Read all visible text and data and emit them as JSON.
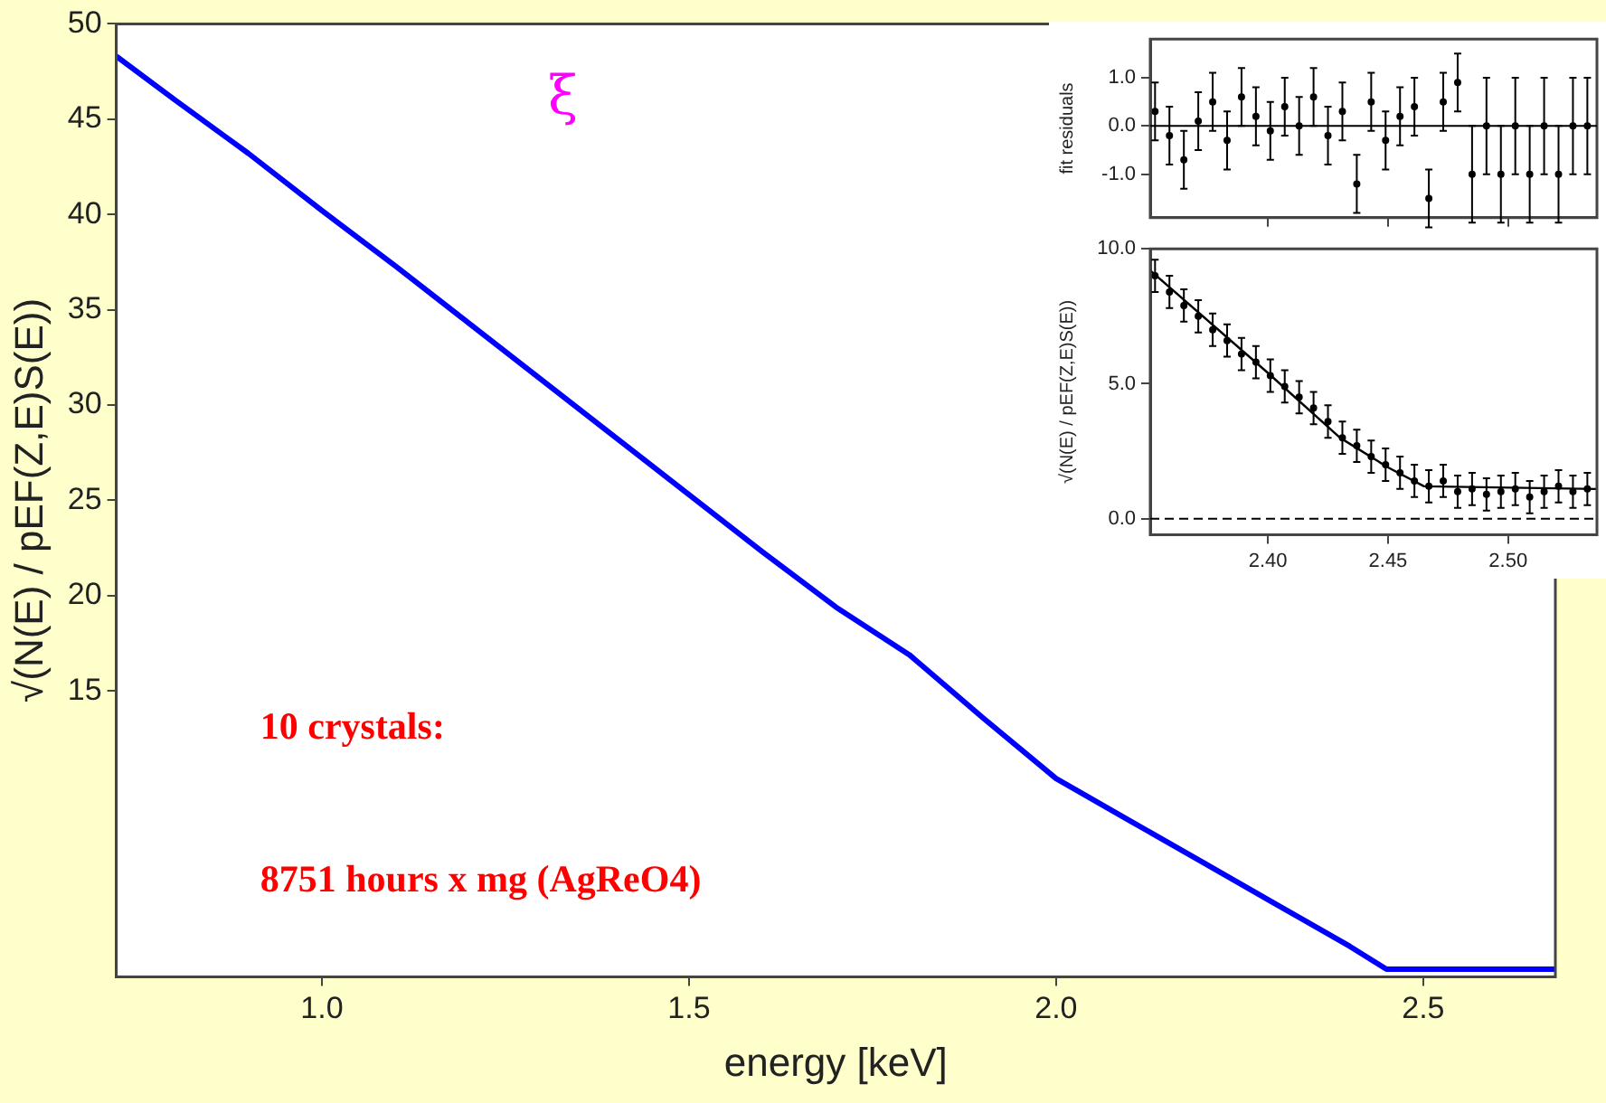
{
  "chart_data": [
    {
      "type": "line",
      "xlabel": "energy [keV]",
      "ylabel": "√(N(E) / pEF(Z,E)S(E))",
      "annotations": [
        "ξ",
        "10 crystals:",
        "8751 hours x mg (AgReO4)"
      ],
      "xlim": [
        0.72,
        2.68
      ],
      "ylim": [
        0,
        50
      ],
      "xticks": [
        {
          "value": 1,
          "label": "1.0"
        },
        {
          "value": 1.5,
          "label": "1.5"
        },
        {
          "value": 2,
          "label": "2.0"
        },
        {
          "value": 2.5,
          "label": "2.5"
        }
      ],
      "yticks": [
        15,
        20,
        25,
        30,
        35,
        40,
        45,
        50
      ],
      "x": [
        0.72,
        0.8,
        0.9,
        1.0,
        1.1,
        1.2,
        1.3,
        1.4,
        1.5,
        1.6,
        1.7,
        1.8,
        1.9,
        2.0,
        2.1,
        2.2,
        2.3,
        2.4,
        2.45,
        2.55,
        2.68
      ],
      "series": [
        {
          "color": "#0000ff",
          "values": [
            48.3,
            46.0,
            43.2,
            40.2,
            37.3,
            34.3,
            31.3,
            28.3,
            25.3,
            22.3,
            19.4,
            16.9,
            13.6,
            10.4,
            8.2,
            6.0,
            3.8,
            1.6,
            0.4,
            0.4,
            0.4
          ]
        }
      ]
    },
    {
      "type": "scatter",
      "ylabel": "fit residuals",
      "marker": "circle",
      "tick_labels": "y",
      "xlim": [
        2.351,
        2.537
      ],
      "ylim": [
        -1.9,
        1.8
      ],
      "xticks": [
        {
          "value": 2.4,
          "label": null
        },
        {
          "value": 2.45,
          "label": null
        },
        {
          "value": 2.5,
          "label": null
        }
      ],
      "yticks": [
        {
          "value": -1,
          "label": "-1.0"
        },
        {
          "value": 0,
          "label": "0.0"
        },
        {
          "value": 1,
          "label": "1.0"
        }
      ],
      "ref_lines": [
        {
          "axis": "y",
          "value": 0,
          "line_style": "solid"
        }
      ],
      "x": [
        2.353,
        2.359,
        2.365,
        2.371,
        2.377,
        2.383,
        2.389,
        2.395,
        2.401,
        2.407,
        2.413,
        2.419,
        2.425,
        2.431,
        2.437,
        2.443,
        2.449,
        2.455,
        2.461,
        2.467,
        2.473,
        2.479,
        2.485,
        2.491,
        2.497,
        2.503,
        2.509,
        2.515,
        2.521,
        2.527,
        2.533
      ],
      "series": [
        {
          "color": "#000000",
          "values": [
            0.3,
            -0.2,
            -0.7,
            0.1,
            0.5,
            -0.3,
            0.6,
            0.2,
            -0.1,
            0.4,
            0.0,
            0.6,
            -0.2,
            0.3,
            -1.2,
            0.5,
            -0.3,
            0.2,
            0.4,
            -1.5,
            0.5,
            0.9,
            -1.0,
            0.0,
            -1.0,
            0.0,
            -1.0,
            0.0,
            -1.0,
            0.0,
            0.0
          ],
          "errors": [
            0.6,
            0.6,
            0.6,
            0.6,
            0.6,
            0.6,
            0.6,
            0.6,
            0.6,
            0.6,
            0.6,
            0.6,
            0.6,
            0.6,
            0.6,
            0.6,
            0.6,
            0.6,
            0.6,
            0.6,
            0.6,
            0.6,
            1.0,
            1.0,
            1.0,
            1.0,
            1.0,
            1.0,
            1.0,
            1.0,
            1.0
          ]
        }
      ]
    },
    {
      "type": "scatter",
      "ylabel": "√(N(E) / pEF(Z,E)S(E))",
      "xlim": [
        2.351,
        2.537
      ],
      "ylim": [
        -0.6,
        10
      ],
      "xticks": [
        {
          "value": 2.4,
          "label": "2.40"
        },
        {
          "value": 2.45,
          "label": "2.45"
        },
        {
          "value": 2.5,
          "label": "2.50"
        }
      ],
      "yticks": [
        {
          "value": 0,
          "label": "0.0"
        },
        {
          "value": 5,
          "label": "5.0"
        },
        {
          "value": 10,
          "label": "10.0"
        }
      ],
      "ref_lines": [
        {
          "axis": "y",
          "value": 0,
          "line_style": "dashed"
        }
      ],
      "x": [
        2.353,
        2.359,
        2.365,
        2.371,
        2.377,
        2.383,
        2.389,
        2.395,
        2.401,
        2.407,
        2.413,
        2.419,
        2.425,
        2.431,
        2.437,
        2.443,
        2.449,
        2.455,
        2.461,
        2.467,
        2.473,
        2.479,
        2.485,
        2.491,
        2.497,
        2.503,
        2.509,
        2.515,
        2.521,
        2.527,
        2.533
      ],
      "series": [
        {
          "color": "#000000",
          "marker": "circle",
          "values": [
            9.0,
            8.4,
            7.9,
            7.5,
            7.0,
            6.6,
            6.1,
            5.8,
            5.3,
            4.9,
            4.5,
            4.1,
            3.6,
            3.0,
            2.7,
            2.3,
            2.0,
            1.7,
            1.4,
            1.2,
            1.4,
            1.0,
            1.1,
            0.9,
            1.0,
            1.1,
            0.8,
            1.0,
            1.2,
            1.0,
            1.1
          ],
          "errors": [
            0.6,
            0.6,
            0.6,
            0.6,
            0.6,
            0.6,
            0.6,
            0.6,
            0.6,
            0.6,
            0.6,
            0.6,
            0.6,
            0.6,
            0.6,
            0.6,
            0.6,
            0.6,
            0.6,
            0.6,
            0.6,
            0.6,
            0.6,
            0.6,
            0.6,
            0.6,
            0.6,
            0.6,
            0.6,
            0.6,
            0.6
          ]
        },
        {
          "type": "line",
          "color": "#000000",
          "x": [
            2.351,
            2.4,
            2.43,
            2.45,
            2.465,
            2.537
          ],
          "values": [
            9.2,
            5.4,
            3.0,
            1.9,
            1.2,
            1.1
          ]
        }
      ]
    }
  ]
}
